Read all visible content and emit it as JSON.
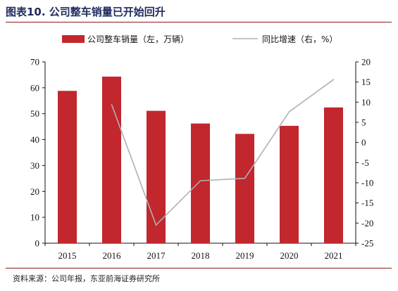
{
  "title": "图表10. 公司整车销量已开始回升",
  "source": "资料来源：公司年报，东亚前海证券研究所",
  "chart_data": {
    "type": "bar",
    "categories": [
      "2015",
      "2016",
      "2017",
      "2018",
      "2019",
      "2020",
      "2021"
    ],
    "series": [
      {
        "name": "公司整车销量（左，万辆）",
        "type": "bar",
        "axis": "left",
        "color": "#c1272d",
        "values": [
          58.8,
          64.3,
          51.1,
          46.2,
          42.2,
          45.3,
          52.4
        ]
      },
      {
        "name": "同比增速（右，%）",
        "type": "line",
        "axis": "right",
        "color": "#b0b0b0",
        "values": [
          null,
          9.4,
          -20.5,
          -9.5,
          -8.9,
          7.6,
          15.6
        ]
      }
    ],
    "ylim_left": [
      0,
      70
    ],
    "yticks_left": [
      "0",
      "10",
      "20",
      "30",
      "40",
      "50",
      "60",
      "70"
    ],
    "ylim_right": [
      -25,
      20
    ],
    "yticks_right": [
      "-25",
      "-20",
      "-15",
      "-10",
      "-5",
      "0",
      "5",
      "10",
      "15",
      "20"
    ],
    "legend_position": "top",
    "grid": false
  }
}
